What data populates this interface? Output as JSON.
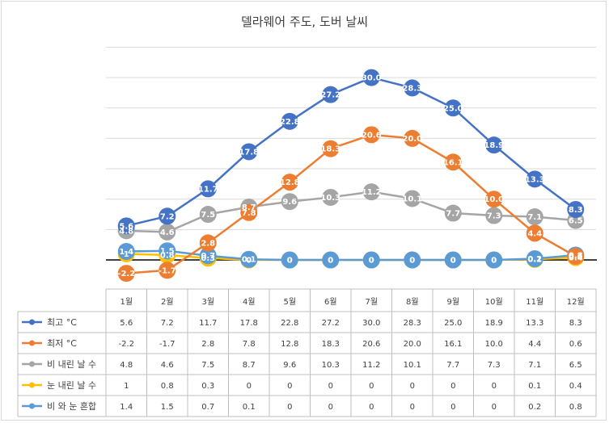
{
  "chart_data": {
    "type": "line",
    "title": "델라웨어 주도, 도버 날씨",
    "categories": [
      "1월",
      "2월",
      "3월",
      "4월",
      "5월",
      "6월",
      "7월",
      "8월",
      "9월",
      "10월",
      "11월",
      "12월"
    ],
    "series": [
      {
        "name": "최고 °C",
        "color": "#4472c4",
        "values": [
          5.6,
          7.2,
          11.7,
          17.8,
          22.8,
          27.2,
          30.0,
          28.3,
          25.0,
          18.9,
          13.3,
          8.3
        ],
        "labels": [
          "5.6",
          "7.2",
          "11.7",
          "17.8",
          "22.8",
          "27.2",
          "30.0",
          "28.3",
          "25.0",
          "18.9",
          "13.3",
          "8.3"
        ]
      },
      {
        "name": "최저 °C",
        "color": "#ed7d31",
        "values": [
          -2.2,
          -1.7,
          2.8,
          7.8,
          12.8,
          18.3,
          20.6,
          20.0,
          16.1,
          10.0,
          4.4,
          0.6
        ],
        "labels": [
          "-2.2",
          "-1.7",
          "2.8",
          "7.8",
          "12.8",
          "18.3",
          "20.6",
          "20.0",
          "16.1",
          "10.0",
          "4.4",
          "0.6"
        ]
      },
      {
        "name": "비 내린 날 수",
        "color": "#a5a5a5",
        "values": [
          4.8,
          4.6,
          7.5,
          8.7,
          9.6,
          10.3,
          11.2,
          10.1,
          7.7,
          7.3,
          7.1,
          6.5
        ],
        "labels": [
          "4.8",
          "4.6",
          "7.5",
          "8.7",
          "9.6",
          "10.3",
          "11.2",
          "10.1",
          "7.7",
          "7.3",
          "7.1",
          "6.5"
        ]
      },
      {
        "name": "눈 내린 날 수",
        "color": "#ffc000",
        "values": [
          1,
          0.8,
          0.3,
          0,
          0,
          0,
          0,
          0,
          0,
          0,
          0.1,
          0.4
        ],
        "labels": [
          "1",
          "0.8",
          "0.3",
          "0",
          "0",
          "0",
          "0",
          "0",
          "0",
          "0",
          "0.1",
          "0.4"
        ]
      },
      {
        "name": "비 와 눈 혼합",
        "color": "#5b9bd5",
        "values": [
          1.4,
          1.5,
          0.7,
          0.1,
          0,
          0,
          0,
          0,
          0,
          0,
          0.2,
          0.8
        ],
        "labels": [
          "1.4",
          "1.5",
          "0.7",
          "0.1",
          "0",
          "0",
          "0",
          "0",
          "0",
          "0",
          "0.2",
          "0.8"
        ]
      }
    ],
    "ylim": [
      -5,
      35
    ],
    "grid": true,
    "legend": "table-below"
  }
}
